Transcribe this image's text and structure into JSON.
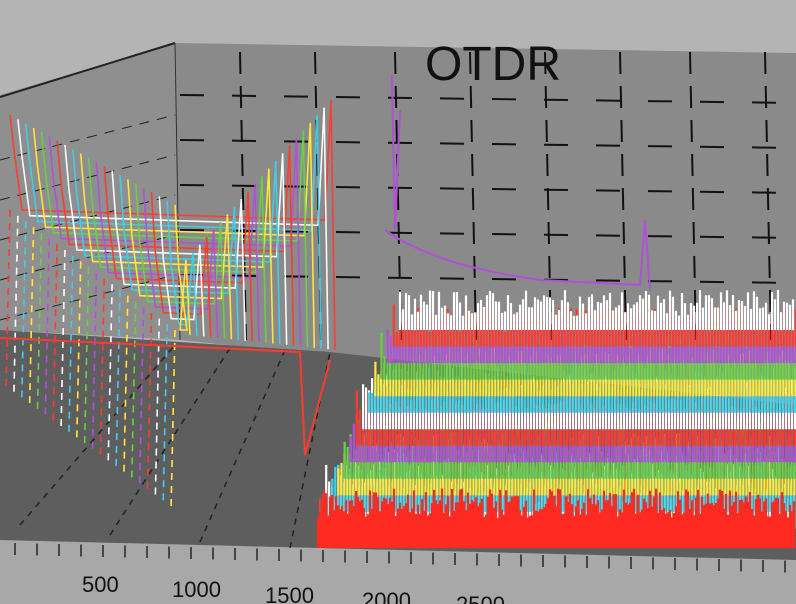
{
  "chart_data": {
    "type": "line",
    "title": "OTDR",
    "x_ticks": [
      "500",
      "1000",
      "1500",
      "2000",
      "2500"
    ],
    "trace_colors": [
      "#ff3a2e",
      "#ffffff",
      "#3fd0e8",
      "#ffea3a",
      "#6ad04a",
      "#b150d8"
    ],
    "trace_count": 22,
    "noise_floor_start_x": 2000,
    "grid": true,
    "colors": {
      "background": "#b4b4b4",
      "back_wall": "#8a8a8a",
      "side_wall": "#8f8f8f",
      "floor": "#5e5e5e",
      "dash": "#111111"
    }
  }
}
